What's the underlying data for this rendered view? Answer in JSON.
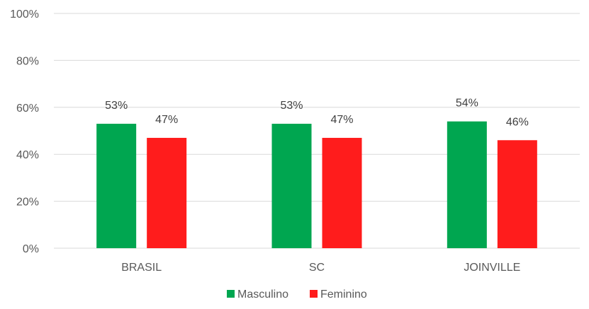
{
  "chart_data": {
    "type": "bar",
    "categories": [
      "BRASIL",
      "SC",
      "JOINVILLE"
    ],
    "series": [
      {
        "name": "Masculino",
        "values": [
          53,
          53,
          54
        ],
        "labels": [
          "53%",
          "53%",
          "54%"
        ]
      },
      {
        "name": "Feminino",
        "values": [
          47,
          47,
          46
        ],
        "labels": [
          "47%",
          "47%",
          "46%"
        ]
      }
    ],
    "ylim": [
      0,
      100
    ],
    "yticks": [
      0,
      20,
      40,
      60,
      80,
      100
    ],
    "ytick_labels": [
      "0%",
      "20%",
      "40%",
      "60%",
      "80%",
      "100%"
    ],
    "grid": true,
    "legend_position": "bottom",
    "colors": {
      "Masculino": "#00a650",
      "Feminino": "#ff1c1c",
      "grid": "#d9d9d9"
    }
  }
}
